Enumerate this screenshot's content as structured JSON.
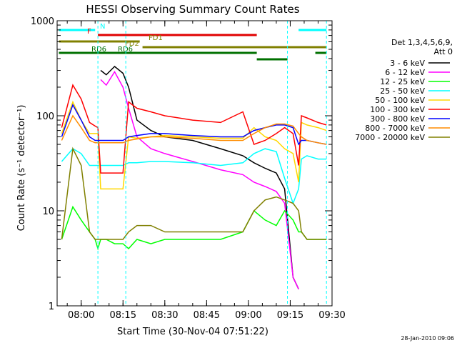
{
  "chart_data": {
    "type": "line",
    "title": "HESSI Observing Summary Count Rates",
    "xlabel": "Start Time (30-Nov-04 07:51:22)",
    "ylabel": "Count Rate (s⁻¹ detector⁻¹)",
    "yscale": "log",
    "ylim": [
      1,
      1000
    ],
    "xlim": [
      "07:51:22",
      "09:30:00"
    ],
    "x_ticks": [
      "08:00",
      "08:15",
      "08:30",
      "08:45",
      "09:00",
      "09:15",
      "09:30"
    ],
    "y_ticks": [
      "1",
      "10",
      "100",
      "1000"
    ],
    "legend_header": [
      "Det 1,3,4,5,6,9,",
      "Att 0"
    ],
    "legend_position": "right",
    "x": [
      "07:53",
      "07:57",
      "08:00",
      "08:03",
      "08:05",
      "08:06",
      "08:07",
      "08:09",
      "08:12",
      "08:15",
      "08:17",
      "08:20",
      "08:25",
      "08:30",
      "08:40",
      "08:50",
      "08:58",
      "09:02",
      "09:06",
      "09:10",
      "09:13",
      "09:16",
      "09:18",
      "09:19",
      "09:21",
      "09:25",
      "09:28"
    ],
    "series": [
      {
        "name": "3 - 6 keV",
        "color": "#000000",
        "values": [
          null,
          null,
          null,
          null,
          null,
          null,
          300,
          270,
          330,
          280,
          200,
          90,
          70,
          60,
          55,
          45,
          38,
          32,
          28,
          25,
          17,
          2,
          1.5,
          null,
          null,
          null,
          null
        ]
      },
      {
        "name": "6 - 12 keV",
        "color": "#ff00ff",
        "values": [
          null,
          null,
          null,
          null,
          null,
          null,
          240,
          210,
          290,
          200,
          120,
          60,
          45,
          40,
          33,
          27,
          24,
          20,
          18,
          16,
          12,
          2,
          1.5,
          null,
          null,
          null,
          null
        ]
      },
      {
        "name": "12 - 25 keV",
        "color": "#00ff00",
        "values": [
          5,
          11,
          8,
          6,
          5,
          4,
          5,
          5,
          4.5,
          4.5,
          4,
          5,
          4.5,
          5,
          5,
          5,
          6,
          10,
          8,
          7,
          10,
          8,
          6,
          6,
          5,
          5,
          5
        ]
      },
      {
        "name": "25 - 50 keV",
        "color": "#00ffff",
        "values": [
          33,
          45,
          40,
          30,
          30,
          30,
          30,
          30,
          30,
          30,
          32,
          32,
          33,
          33,
          32,
          30,
          32,
          40,
          45,
          42,
          22,
          12,
          17,
          35,
          38,
          35,
          35
        ]
      },
      {
        "name": "50 - 100 keV",
        "color": "#ffd700",
        "values": [
          65,
          140,
          90,
          65,
          65,
          65,
          17,
          17,
          17,
          17,
          60,
          58,
          60,
          62,
          60,
          58,
          58,
          75,
          60,
          55,
          45,
          40,
          20,
          85,
          80,
          75,
          70
        ]
      },
      {
        "name": "100 - 300 keV",
        "color": "#ff0000",
        "values": [
          75,
          210,
          150,
          85,
          78,
          75,
          25,
          25,
          25,
          25,
          140,
          120,
          110,
          100,
          90,
          85,
          110,
          50,
          55,
          65,
          75,
          65,
          30,
          100,
          95,
          85,
          80
        ]
      },
      {
        "name": "300 - 800 keV",
        "color": "#0000ff",
        "values": [
          60,
          130,
          90,
          60,
          55,
          55,
          55,
          55,
          55,
          55,
          60,
          62,
          65,
          65,
          62,
          60,
          60,
          70,
          75,
          80,
          80,
          75,
          50,
          55,
          55,
          52,
          50
        ]
      },
      {
        "name": "800 - 7000 keV",
        "color": "#ff8c00",
        "values": [
          55,
          100,
          75,
          55,
          52,
          52,
          52,
          52,
          52,
          52,
          55,
          57,
          60,
          60,
          58,
          55,
          55,
          65,
          75,
          82,
          82,
          78,
          65,
          60,
          55,
          52,
          50
        ]
      },
      {
        "name": "7000 - 20000 keV",
        "color": "#808000",
        "values": [
          5,
          45,
          30,
          6,
          5,
          5,
          5,
          5,
          5,
          5,
          6,
          7,
          7,
          6,
          6,
          6,
          6,
          10,
          13,
          14,
          13,
          12,
          10,
          6,
          5,
          5,
          5
        ]
      }
    ],
    "attenuator_state_bars": [
      {
        "label": "N",
        "color": "#00ffff",
        "segments": [
          [
            "07:52",
            "08:05"
          ],
          [
            "09:18",
            "09:28"
          ]
        ]
      },
      {
        "label": "F",
        "color": "#e00000",
        "segments": [
          [
            "08:06",
            "09:03"
          ]
        ]
      },
      {
        "label": "FD1",
        "color": "#808000",
        "segments": [
          [
            "07:52",
            "08:21"
          ]
        ]
      },
      {
        "label": "FD2",
        "color": "#808000",
        "segments": [
          [
            "08:22",
            "09:28"
          ]
        ]
      },
      {
        "label": "RD6",
        "color": "#007000",
        "segments": [
          [
            "07:52",
            "08:03"
          ],
          [
            "08:07",
            "08:23"
          ]
        ]
      },
      {
        "label": "RD6",
        "color": "#007000",
        "segments": [
          [
            "07:52",
            "09:03"
          ],
          [
            "09:24",
            "09:28"
          ]
        ]
      },
      {
        "label": "",
        "color": "#007000",
        "segments": [
          [
            "09:03",
            "09:14"
          ]
        ]
      }
    ],
    "timestamp": "28-Jan-2010 09:06"
  }
}
